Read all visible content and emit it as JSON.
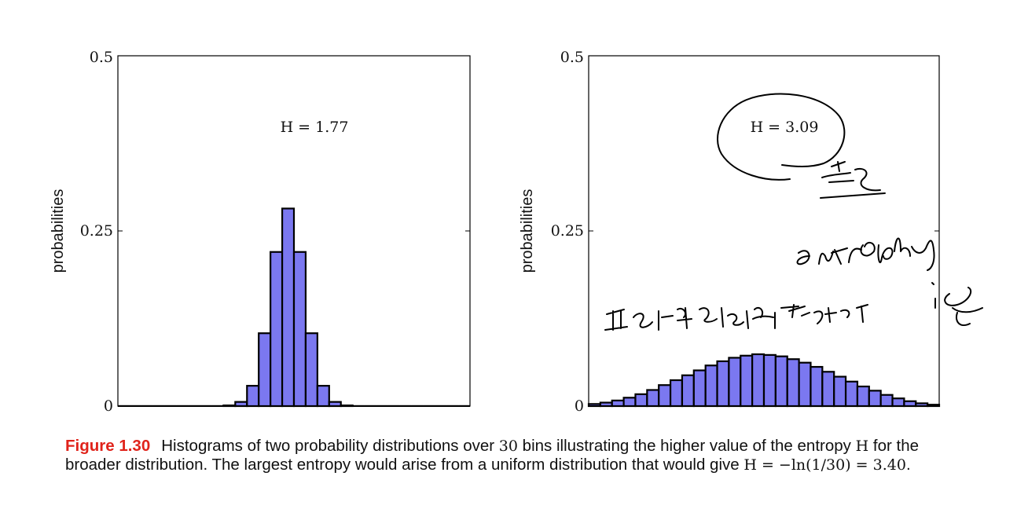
{
  "chart_data": [
    {
      "type": "bar",
      "ylabel": "probabilities",
      "ylim": [
        0,
        0.5
      ],
      "yticks": [
        "0",
        "0.25",
        "0.5"
      ],
      "annotation": "H = 1.77",
      "bar_color": "#7b78f0",
      "n_bins": 30,
      "values": [
        0,
        0,
        0,
        0,
        0,
        0,
        0,
        0,
        0,
        0.001,
        0.006,
        0.029,
        0.104,
        0.22,
        0.282,
        0.22,
        0.104,
        0.029,
        0.006,
        0.001,
        0,
        0,
        0,
        0,
        0,
        0,
        0,
        0,
        0,
        0
      ]
    },
    {
      "type": "bar",
      "ylabel": "probabilities",
      "ylim": [
        0,
        0.5
      ],
      "yticks": [
        "0",
        "0.25",
        "0.5"
      ],
      "annotation": "H = 3.09",
      "bar_color": "#7b78f0",
      "n_bins": 30,
      "values": [
        0.003,
        0.005,
        0.008,
        0.012,
        0.017,
        0.023,
        0.03,
        0.037,
        0.044,
        0.051,
        0.058,
        0.064,
        0.069,
        0.072,
        0.074,
        0.073,
        0.071,
        0.067,
        0.062,
        0.056,
        0.049,
        0.042,
        0.035,
        0.028,
        0.022,
        0.016,
        0.011,
        0.007,
        0.004,
        0.002
      ]
    }
  ],
  "caption": {
    "label": "Figure 1.30",
    "text_1": "Histograms of two probability distributions over ",
    "bins_number": "30",
    "text_2": " bins illustrating the higher value of the entropy ",
    "H_symbol": "H",
    "text_3": " for the broader distribution. The largest entropy would arise from a uniform distribution that would give ",
    "formula": "H = −ln(1/30) = 3.40",
    "period": "."
  }
}
